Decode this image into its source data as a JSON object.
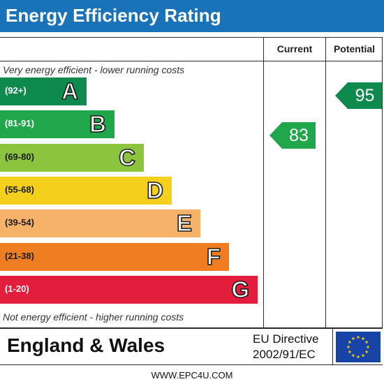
{
  "header": {
    "title": "Energy Efficiency Rating",
    "color": "#1a73b8"
  },
  "columns": {
    "current": "Current",
    "potential": "Potential"
  },
  "captions": {
    "top": "Very energy efficient - lower running costs",
    "bottom": "Not energy efficient - higher running costs"
  },
  "bands": [
    {
      "range": "(92+)",
      "letter": "A",
      "color": "#0e8a4f"
    },
    {
      "range": "(81-91)",
      "letter": "B",
      "color": "#20a64b"
    },
    {
      "range": "(69-80)",
      "letter": "C",
      "color": "#8cc43f"
    },
    {
      "range": "(55-68)",
      "letter": "D",
      "color": "#f4cf1b"
    },
    {
      "range": "(39-54)",
      "letter": "E",
      "color": "#f7b26a"
    },
    {
      "range": "(21-38)",
      "letter": "F",
      "color": "#ef7e22"
    },
    {
      "range": "(1-20)",
      "letter": "G",
      "color": "#e31d3c"
    }
  ],
  "ratings": {
    "current": {
      "value": "83",
      "band": "B",
      "color": "#20a64b"
    },
    "potential": {
      "value": "95",
      "band": "A",
      "color": "#0e8a4f"
    }
  },
  "footer": {
    "region": "England & Wales",
    "eu_line1": "EU Directive",
    "eu_line2": "2002/91/EC",
    "flag_color": "#1844a8",
    "star_color": "#f5d400"
  },
  "website": "WWW.EPC4U.COM"
}
